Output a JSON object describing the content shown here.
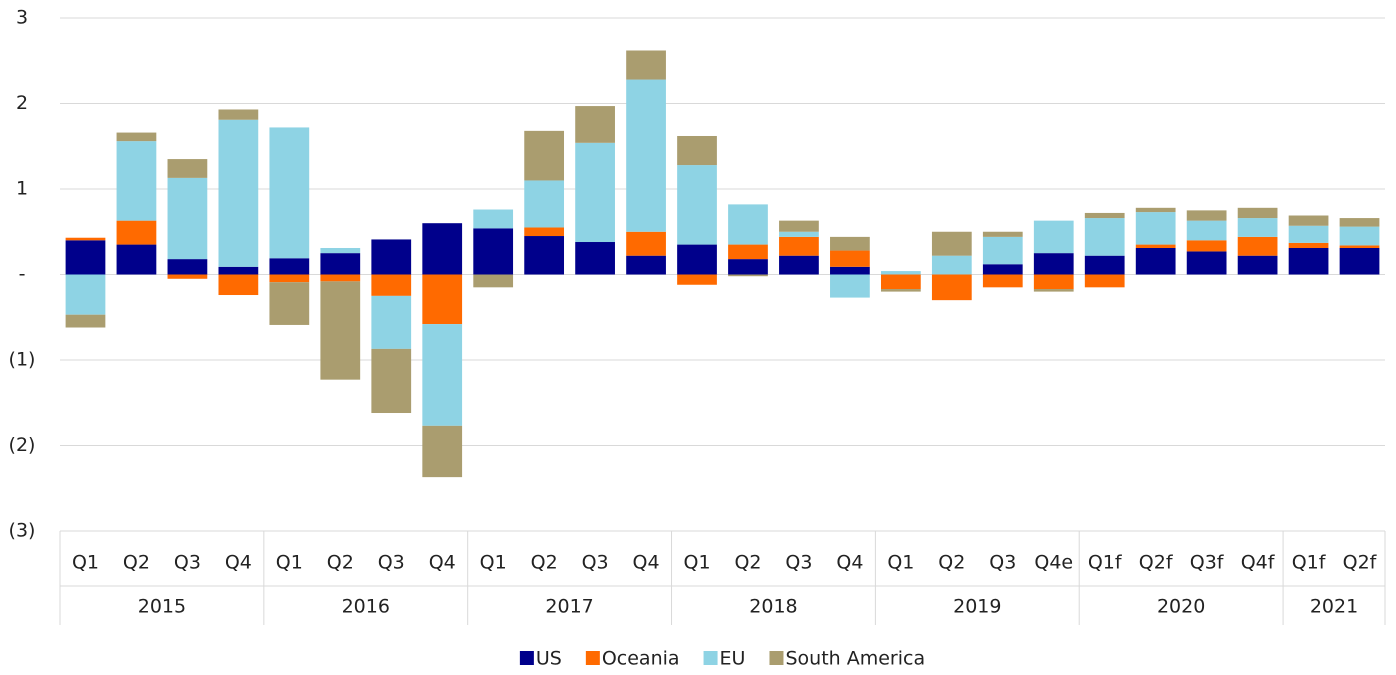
{
  "chart_data": {
    "type": "bar",
    "stacked": true,
    "groups": [
      {
        "name": "2015",
        "categories": [
          "Q1",
          "Q2",
          "Q3",
          "Q4"
        ]
      },
      {
        "name": "2016",
        "categories": [
          "Q1",
          "Q2",
          "Q3",
          "Q4"
        ]
      },
      {
        "name": "2017",
        "categories": [
          "Q1",
          "Q2",
          "Q3",
          "Q4"
        ]
      },
      {
        "name": "2018",
        "categories": [
          "Q1",
          "Q2",
          "Q3",
          "Q4"
        ]
      },
      {
        "name": "2019",
        "categories": [
          "Q1",
          "Q2",
          "Q3",
          "Q4e"
        ]
      },
      {
        "name": "2020",
        "categories": [
          "Q1f",
          "Q2f",
          "Q3f",
          "Q4f"
        ]
      },
      {
        "name": "2021",
        "categories": [
          "Q1f",
          "Q2f"
        ]
      }
    ],
    "series": [
      {
        "name": "US",
        "color": "#00008b",
        "values": [
          0.4,
          0.35,
          0.18,
          0.09,
          0.19,
          0.25,
          0.41,
          0.6,
          0.54,
          0.45,
          0.38,
          0.22,
          0.35,
          0.18,
          0.22,
          0.09,
          0,
          0,
          0.12,
          0.25,
          0.22,
          0.31,
          0.27,
          0.22,
          0.31,
          0.31
        ]
      },
      {
        "name": "Oceania",
        "color": "#ff6a00",
        "values": [
          0.03,
          0.28,
          -0.05,
          -0.24,
          -0.09,
          -0.08,
          -0.25,
          -0.58,
          0,
          0.1,
          0,
          0.28,
          -0.12,
          0.17,
          0.22,
          0.19,
          -0.17,
          -0.3,
          -0.15,
          -0.17,
          -0.15,
          0.04,
          0.13,
          0.22,
          0.06,
          0.03
        ]
      },
      {
        "name": "EU",
        "color": "#8ed3e4",
        "values": [
          -0.47,
          0.93,
          0.95,
          1.72,
          1.53,
          0.06,
          -0.62,
          -1.19,
          0.22,
          0.55,
          1.16,
          1.78,
          0.93,
          0.47,
          0.06,
          -0.27,
          0.04,
          0.22,
          0.32,
          0.38,
          0.44,
          0.38,
          0.23,
          0.22,
          0.2,
          0.22
        ]
      },
      {
        "name": "South America",
        "color": "#aa9d6f",
        "values": [
          -0.15,
          0.1,
          0.22,
          0.12,
          -0.5,
          -1.15,
          -0.75,
          -0.6,
          -0.15,
          0.58,
          0.43,
          0.34,
          0.34,
          -0.02,
          0.13,
          0.16,
          -0.03,
          0.28,
          0.06,
          -0.03,
          0.06,
          0.05,
          0.12,
          0.12,
          0.12,
          0.1
        ]
      }
    ],
    "ylim": [
      -3,
      3
    ],
    "yticks": [
      {
        "value": -3,
        "label": "(3)"
      },
      {
        "value": -2,
        "label": "(2)"
      },
      {
        "value": -1,
        "label": "(1)"
      },
      {
        "value": 0,
        "label": "-"
      },
      1,
      2,
      3
    ],
    "grid": true,
    "legend": "bottom"
  }
}
